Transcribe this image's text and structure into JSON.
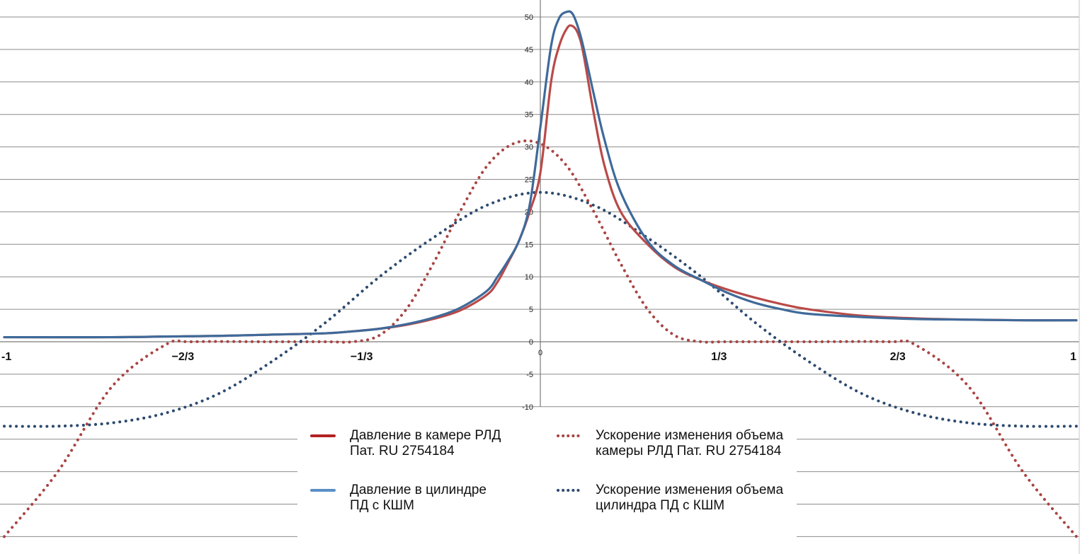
{
  "chart_data": {
    "type": "line",
    "title": "",
    "xlabel": "",
    "ylabel": "",
    "xlim": [
      -1,
      1
    ],
    "ylim": [
      -30,
      50
    ],
    "grid": true,
    "y_ticks": [
      "50",
      "45",
      "40",
      "35",
      "30",
      "25",
      "20",
      "15",
      "10",
      "5",
      "0",
      "-5",
      "-10"
    ],
    "x_tick_labels": [
      {
        "label": "-1",
        "x": -1
      },
      {
        "label": "−2/3",
        "x": -0.6667
      },
      {
        "label": "−1/3",
        "x": -0.3333
      },
      {
        "label": "0",
        "x": 0
      },
      {
        "label": "1/3",
        "x": 0.3333
      },
      {
        "label": "2/3",
        "x": 0.6667
      },
      {
        "label": "1",
        "x": 1
      }
    ],
    "series": [
      {
        "name": "Давление в камере РЛД\nПат. RU 2754184",
        "color": "#b94a48",
        "style": "solid",
        "x": [
          -1,
          -0.8,
          -0.7,
          -0.6,
          -0.5,
          -0.4,
          -0.35,
          -0.3,
          -0.25,
          -0.2,
          -0.15,
          -0.1,
          -0.08,
          -0.06,
          -0.04,
          -0.02,
          0,
          0.02,
          0.035,
          0.05,
          0.06,
          0.07,
          0.08,
          0.1,
          0.12,
          0.15,
          0.2,
          0.25,
          0.3,
          0.35,
          0.4,
          0.45,
          0.5,
          0.6,
          0.7,
          0.8,
          0.9,
          1
        ],
        "y": [
          0.7,
          0.7,
          0.8,
          0.9,
          1.1,
          1.3,
          1.6,
          2.0,
          2.6,
          3.5,
          4.8,
          7.2,
          9.2,
          12.2,
          15.5,
          20,
          26,
          40,
          45.5,
          48.3,
          48.6,
          47.5,
          44.5,
          35,
          27,
          20,
          15,
          11.5,
          9.5,
          8,
          6.8,
          5.8,
          5,
          4,
          3.6,
          3.4,
          3.3,
          3.3
        ]
      },
      {
        "name": "Давление в цилиндре\nПД с КШМ",
        "color": "#3f6a9a",
        "style": "solid",
        "x": [
          -1,
          -0.8,
          -0.7,
          -0.6,
          -0.5,
          -0.4,
          -0.35,
          -0.3,
          -0.25,
          -0.2,
          -0.15,
          -0.1,
          -0.08,
          -0.06,
          -0.04,
          -0.02,
          0,
          0.02,
          0.035,
          0.05,
          0.06,
          0.07,
          0.08,
          0.1,
          0.12,
          0.15,
          0.2,
          0.25,
          0.3,
          0.35,
          0.4,
          0.45,
          0.5,
          0.6,
          0.7,
          0.8,
          0.9,
          1
        ],
        "y": [
          0.7,
          0.7,
          0.8,
          0.9,
          1.1,
          1.3,
          1.6,
          2.0,
          2.7,
          3.7,
          5.2,
          7.8,
          10,
          12.5,
          15.5,
          21,
          33,
          45.5,
          49.8,
          50.8,
          50.5,
          48.5,
          45.5,
          38,
          31,
          23,
          15.5,
          11.7,
          9.5,
          7.5,
          6,
          5,
          4.3,
          3.8,
          3.5,
          3.4,
          3.3,
          3.3
        ]
      },
      {
        "name": "Ускорение изменения объема\nкамеры РЛД  Пат. RU 2754184",
        "color": "#a94442",
        "style": "dotted",
        "x": [
          -1,
          -0.9,
          -0.8,
          -0.7,
          -0.65,
          -0.5,
          -0.4,
          -0.35,
          -0.3,
          -0.25,
          -0.2,
          -0.15,
          -0.1,
          -0.05,
          0,
          0.05,
          0.1,
          0.15,
          0.2,
          0.25,
          0.3,
          0.35,
          0.5,
          0.65,
          0.7,
          0.8,
          0.9,
          1
        ],
        "y": [
          -30,
          -20,
          -7,
          -0.5,
          0,
          0,
          0,
          0,
          1,
          5,
          12,
          20,
          27,
          30.5,
          30.5,
          27,
          20,
          12,
          5,
          1,
          0,
          0,
          0,
          0,
          -0.5,
          -7,
          -20,
          -30
        ]
      },
      {
        "name": "Ускорение изменения объема\nцилиндра ПД с КШМ",
        "color": "#2c4a6e",
        "style": "dotted",
        "x": [
          -1,
          -0.9,
          -0.8,
          -0.7,
          -0.6,
          -0.5,
          -0.4,
          -0.3,
          -0.2,
          -0.1,
          0,
          0.1,
          0.2,
          0.3,
          0.4,
          0.5,
          0.6,
          0.7,
          0.8,
          0.9,
          1
        ],
        "y": [
          -13,
          -13,
          -12.5,
          -11,
          -8,
          -3,
          3,
          10,
          16,
          21,
          23,
          21,
          16,
          10,
          3,
          -3,
          -8,
          -11,
          -12.5,
          -13,
          -13
        ]
      }
    ]
  },
  "legend": {
    "items": [
      {
        "label": "Давление в камере РЛД\nПат. RU 2754184",
        "color": "#b22222",
        "style": "solid"
      },
      {
        "label": "Ускорение изменения объема\nкамеры РЛД  Пат. RU 2754184",
        "color": "#a94442",
        "style": "dotted"
      },
      {
        "label": "Давление в цилиндре\nПД с КШМ",
        "color": "#5b8fc7",
        "style": "solid"
      },
      {
        "label": "Ускорение изменения объема\nцилиндра ПД с КШМ",
        "color": "#2c4a6e",
        "style": "dotted"
      }
    ]
  }
}
